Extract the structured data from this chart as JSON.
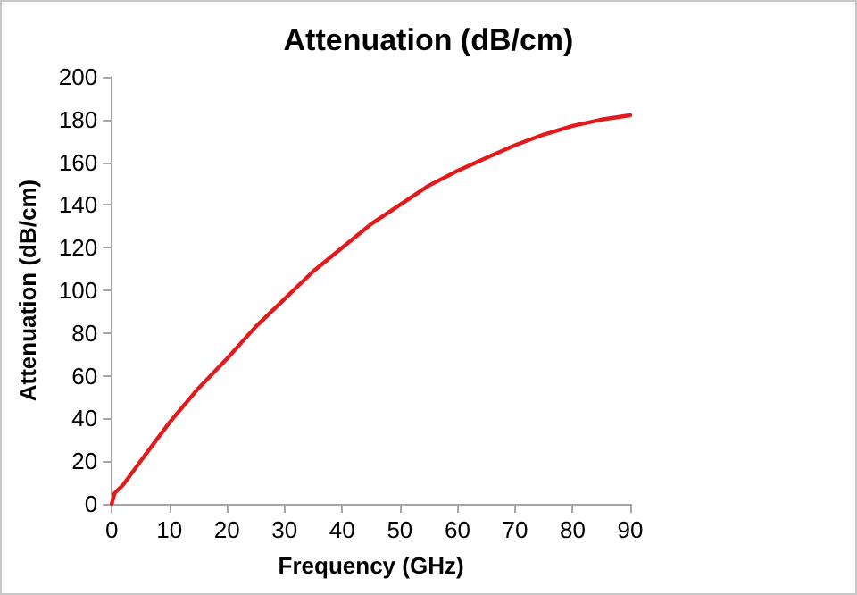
{
  "chart_data": {
    "type": "line",
    "title": "Attenuation (dB/cm)",
    "xlabel": "Frequency (GHz)",
    "ylabel": "Attenuation (dB/cm)",
    "x": [
      0,
      0.5,
      2,
      5,
      10,
      15,
      20,
      25,
      30,
      35,
      40,
      45,
      50,
      55,
      60,
      65,
      70,
      75,
      80,
      85,
      90
    ],
    "series": [
      {
        "color": "#e31a1c",
        "values": [
          0,
          5,
          9,
          20,
          38,
          54,
          68,
          83,
          96,
          109,
          120,
          131,
          140,
          149,
          156,
          162,
          168,
          173,
          177,
          180,
          182
        ]
      }
    ],
    "xlim": [
      0,
      90
    ],
    "xticks": [
      0,
      10,
      20,
      30,
      40,
      50,
      60,
      70,
      80,
      90
    ],
    "ylim": [
      0,
      200
    ],
    "yticks": [
      0,
      20,
      40,
      60,
      80,
      100,
      120,
      140,
      160,
      180,
      200
    ],
    "grid": false,
    "marker": "none",
    "line_style": "solid"
  }
}
